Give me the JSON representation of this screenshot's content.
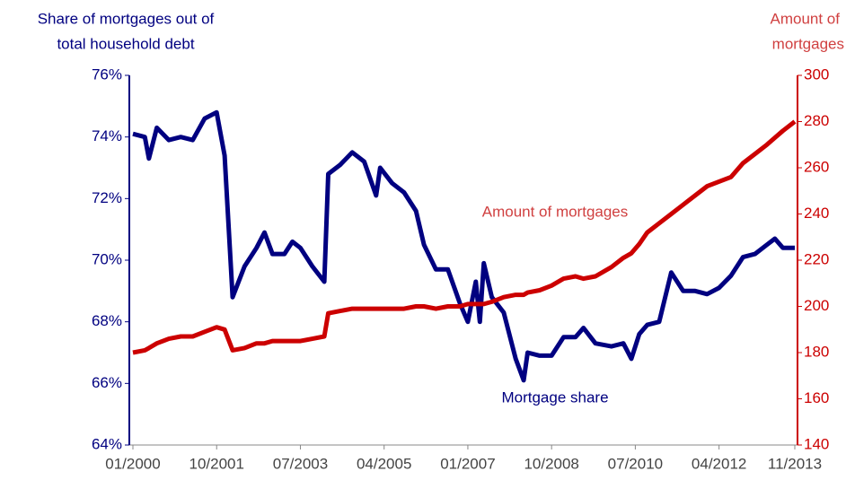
{
  "chart_data": {
    "type": "line",
    "y_label": [
      "Share of mortgages out of",
      "total household debt"
    ],
    "y2_label": [
      "Amount of",
      "mortgages"
    ],
    "x": [
      "01/2000",
      "04/2000",
      "05/2000",
      "07/2000",
      "10/2000",
      "01/2001",
      "04/2001",
      "07/2001",
      "10/2001",
      "12/2001",
      "02/2002",
      "05/2002",
      "08/2002",
      "10/2002",
      "12/2002",
      "03/2003",
      "05/2003",
      "07/2003",
      "10/2003",
      "01/2004",
      "02/2004",
      "05/2004",
      "08/2004",
      "11/2004",
      "02/2005",
      "03/2005",
      "06/2005",
      "09/2005",
      "12/2005",
      "02/2006",
      "05/2006",
      "08/2006",
      "11/2006",
      "01/2007",
      "03/2007",
      "04/2007",
      "05/2007",
      "07/2007",
      "10/2007",
      "01/2008",
      "03/2008",
      "04/2008",
      "07/2008",
      "10/2008",
      "01/2009",
      "04/2009",
      "06/2009",
      "09/2009",
      "01/2010",
      "04/2010",
      "06/2010",
      "08/2010",
      "10/2010",
      "01/2011",
      "04/2011",
      "07/2011",
      "10/2011",
      "01/2012",
      "04/2012",
      "07/2012",
      "10/2012",
      "01/2013",
      "04/2013",
      "06/2013",
      "08/2013",
      "11/2013"
    ],
    "xlim": [
      "01/2000",
      "11/2013"
    ],
    "xticks": [
      "01/2000",
      "10/2001",
      "07/2003",
      "04/2005",
      "01/2007",
      "10/2008",
      "07/2010",
      "04/2012",
      "11/2013"
    ],
    "ylim": [
      64,
      76
    ],
    "yticks": [
      {
        "value": 64,
        "label": "64%"
      },
      {
        "value": 66,
        "label": "66%"
      },
      {
        "value": 68,
        "label": "68%"
      },
      {
        "value": 70,
        "label": "70%"
      },
      {
        "value": 72,
        "label": "72%"
      },
      {
        "value": 74,
        "label": "74%"
      },
      {
        "value": 76,
        "label": "76%"
      }
    ],
    "y2lim": [
      140,
      300
    ],
    "y2ticks": [
      140,
      160,
      180,
      200,
      220,
      240,
      260,
      280,
      300
    ],
    "series": [
      {
        "name": "Mortgage share",
        "color": "#000080",
        "values": [
          74.1,
          74.0,
          73.3,
          74.3,
          73.9,
          74.0,
          73.9,
          74.6,
          74.8,
          73.4,
          68.8,
          69.8,
          70.4,
          70.9,
          70.2,
          70.2,
          70.6,
          70.4,
          69.8,
          69.3,
          72.8,
          73.1,
          73.5,
          73.2,
          72.1,
          73.0,
          72.5,
          72.2,
          71.6,
          70.5,
          69.7,
          69.7,
          68.6,
          68.0,
          69.3,
          68.0,
          69.9,
          68.8,
          68.3,
          66.8,
          66.1,
          67.0,
          66.9,
          66.9,
          67.5,
          67.5,
          67.8,
          67.3,
          67.2,
          67.3,
          66.8,
          67.6,
          67.9,
          68.0,
          69.6,
          69.0,
          69.0,
          68.9,
          69.1,
          69.5,
          70.1,
          70.2,
          70.5,
          70.7,
          70.4,
          70.4
        ]
      },
      {
        "name": "Amount of mortgages",
        "color": "#cc0000",
        "axis": "y2",
        "values": [
          180,
          181,
          182,
          184,
          186,
          187,
          187,
          189,
          191,
          190,
          181,
          182,
          184,
          184,
          185,
          185,
          185,
          185,
          186,
          187,
          197,
          198,
          199,
          199,
          199,
          199,
          199,
          199,
          200,
          200,
          199,
          200,
          200,
          201,
          201,
          201,
          201,
          202,
          204,
          205,
          205,
          206,
          207,
          209,
          212,
          213,
          212,
          213,
          217,
          221,
          223,
          227,
          232,
          236,
          240,
          244,
          248,
          252,
          254,
          256,
          262,
          266,
          270,
          273,
          276,
          280
        ]
      }
    ]
  }
}
